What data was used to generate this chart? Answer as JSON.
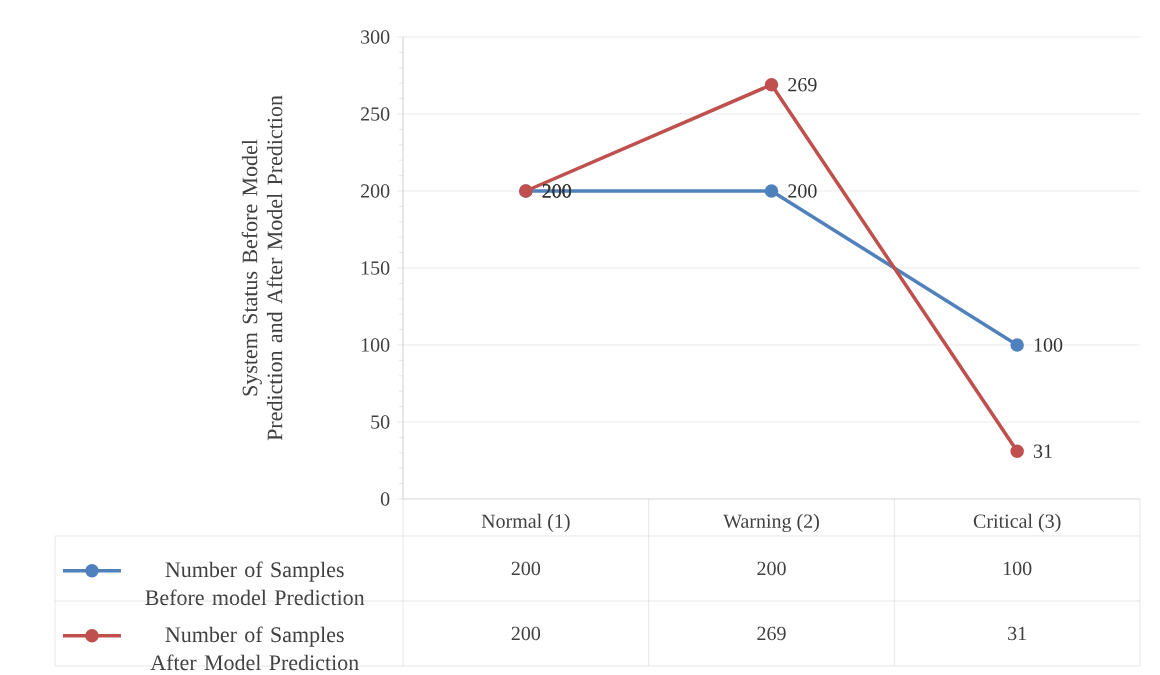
{
  "chart_data": {
    "type": "line",
    "ylabel": "System Status Before Model Prediction and  After Model Prediction",
    "categories": [
      "Normal (1)",
      "Warning (2)",
      "Critical (3)"
    ],
    "series": [
      {
        "name": "Number of Samples Before model Prediction",
        "color": "#4f81bd",
        "values": [
          200,
          200,
          100
        ],
        "value_labels": [
          "200",
          "200",
          "100"
        ]
      },
      {
        "name": "Number of Samples After Model Prediction",
        "color": "#c0504d",
        "values": [
          200,
          269,
          31
        ],
        "value_labels": [
          "200",
          "269",
          "31"
        ]
      }
    ],
    "ylim": [
      0,
      300
    ],
    "yticks": [
      0,
      50,
      100,
      150,
      200,
      250,
      300
    ],
    "grid": "y",
    "legend": "bottom",
    "marker": "circle",
    "line_style": "solid"
  }
}
